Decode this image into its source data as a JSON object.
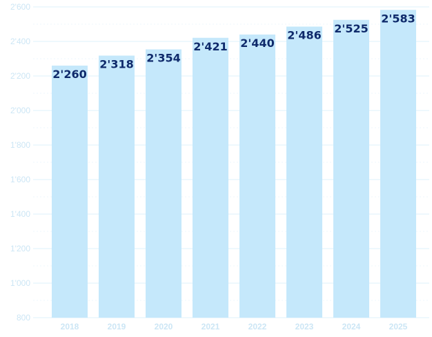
{
  "chart_data": {
    "type": "bar",
    "categories": [
      "2018",
      "2019",
      "2020",
      "2021",
      "2022",
      "2023",
      "2024",
      "2025"
    ],
    "values": [
      2260,
      2318,
      2354,
      2421,
      2440,
      2486,
      2525,
      2583
    ],
    "value_labels": [
      "2'260",
      "2'318",
      "2'354",
      "2'421",
      "2'440",
      "2'486",
      "2'525",
      "2'583"
    ],
    "title": "",
    "xlabel": "",
    "ylabel": "",
    "ylim": [
      800,
      2600
    ],
    "yticks": [
      800,
      1000,
      1200,
      1400,
      1600,
      1800,
      2000,
      2200,
      2400,
      2600
    ],
    "ytick_labels": [
      "800",
      "1'000",
      "1'200",
      "1'400",
      "1'600",
      "1'800",
      "2'000",
      "2'200",
      "2'400",
      "2'600"
    ],
    "grid": true,
    "legend": "none",
    "colors": {
      "bar": "#c5e8fb",
      "gridline": "#dcf0fb",
      "axis_text": "#cce6f5",
      "data_label": "#0f2a6b"
    }
  }
}
